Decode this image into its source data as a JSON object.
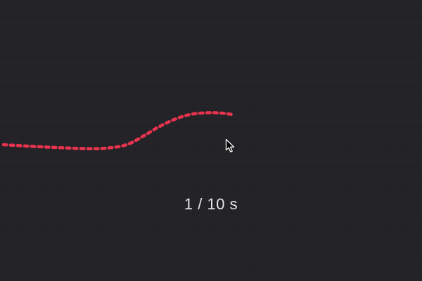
{
  "timer": {
    "text": "1 / 10 s"
  },
  "trail": {
    "color": "#e8334f"
  },
  "cursor": {
    "icon": "arrow-cursor-icon"
  },
  "colors": {
    "background": "#232327",
    "text": "#e6e6e6"
  }
}
